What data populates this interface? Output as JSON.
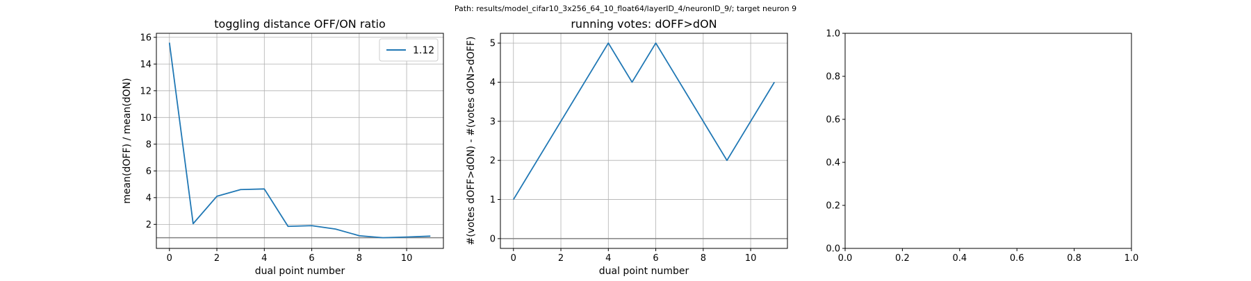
{
  "suptitle": "Path: results/model_cifar10_3x256_64_10_float64/layerID_4/neuronID_9/; target neuron 9",
  "colors": {
    "line": "#1f77b4",
    "hline": "#808080",
    "grid": "#b0b0b0"
  },
  "chart_data": [
    {
      "type": "line",
      "title": "toggling distance OFF/ON ratio",
      "xlabel": "dual point number",
      "ylabel": "mean(dOFF) / mean(dON)",
      "xlim": [
        -0.55,
        11.55
      ],
      "ylim": [
        0.2,
        16.3
      ],
      "xticks": [
        0,
        2,
        4,
        6,
        8,
        10
      ],
      "yticks": [
        2,
        4,
        6,
        8,
        10,
        12,
        14,
        16
      ],
      "grid": true,
      "hline": 1.0,
      "legend": {
        "placement": "top-right",
        "entries": [
          "1.12"
        ]
      },
      "series": [
        {
          "name": "1.12",
          "x": [
            0,
            1,
            2,
            3,
            4,
            5,
            6,
            7,
            8,
            9,
            10,
            11
          ],
          "y": [
            15.6,
            2.05,
            4.1,
            4.6,
            4.65,
            1.85,
            1.9,
            1.65,
            1.15,
            1.0,
            1.05,
            1.12
          ]
        }
      ]
    },
    {
      "type": "line",
      "title": "running votes: dOFF>dON",
      "xlabel": "dual point number",
      "ylabel": "#(votes dOFF>dON) - #(votes dON>dOFF)",
      "xlim": [
        -0.55,
        11.55
      ],
      "ylim": [
        -0.25,
        5.25
      ],
      "xticks": [
        0,
        2,
        4,
        6,
        8,
        10
      ],
      "yticks": [
        0,
        1,
        2,
        3,
        4,
        5
      ],
      "grid": true,
      "hline": 0,
      "series": [
        {
          "x": [
            0,
            1,
            2,
            3,
            4,
            5,
            6,
            7,
            8,
            9,
            10,
            11
          ],
          "y": [
            1,
            2,
            3,
            4,
            5,
            4,
            5,
            4,
            3,
            2,
            3,
            4
          ]
        }
      ]
    },
    {
      "type": "empty",
      "title": "",
      "xlim": [
        0,
        1
      ],
      "ylim": [
        0,
        1
      ],
      "xticks": [
        0.0,
        0.2,
        0.4,
        0.6,
        0.8,
        1.0
      ],
      "yticks": [
        0.0,
        0.2,
        0.4,
        0.6,
        0.8,
        1.0
      ],
      "grid": false,
      "series": []
    }
  ]
}
